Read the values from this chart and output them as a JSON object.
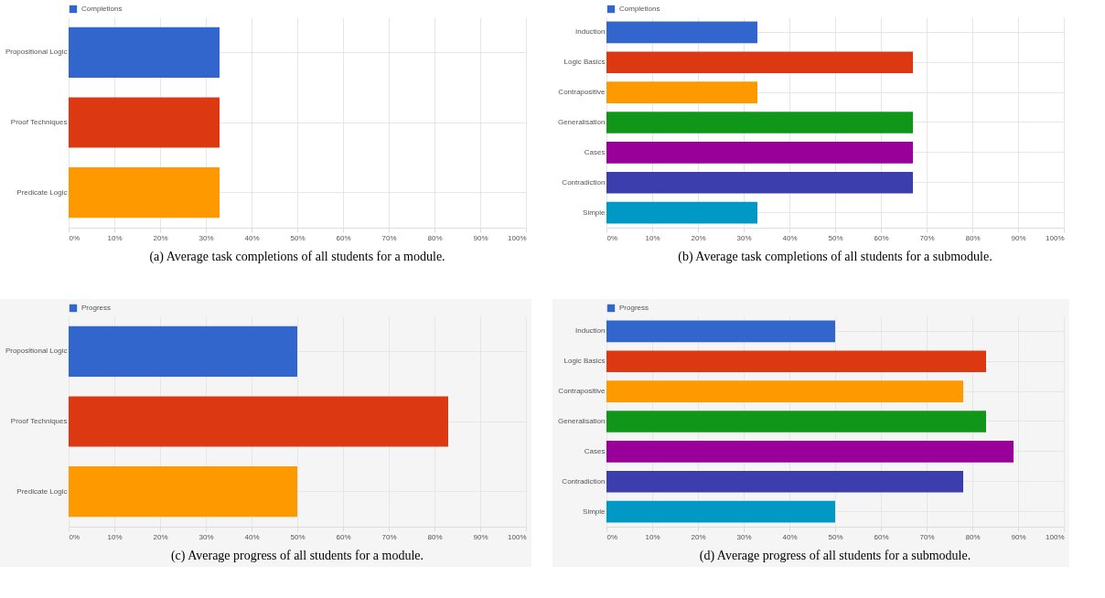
{
  "chart_data": [
    {
      "type": "bar",
      "orientation": "horizontal",
      "title": "(a) Average task completions of all students for a module.",
      "categories": [
        "Propositional Logic",
        "Proof Techniques",
        "Predicate Logic"
      ],
      "series": [
        {
          "name": "Completions",
          "color": "#3366cc",
          "colors": [
            "#3366cc",
            "#dc3912",
            "#ff9900"
          ],
          "values": [
            33,
            33,
            33
          ]
        }
      ],
      "xlim": [
        0,
        100
      ],
      "xticks": [
        {
          "value": 0,
          "label": "0%"
        },
        {
          "value": 10,
          "label": "10%"
        },
        {
          "value": 20,
          "label": "20%"
        },
        {
          "value": 30,
          "label": "30%"
        },
        {
          "value": 40,
          "label": "40%"
        },
        {
          "value": 50,
          "label": "50%"
        },
        {
          "value": 60,
          "label": "60%"
        },
        {
          "value": 70,
          "label": "70%"
        },
        {
          "value": 80,
          "label": "80%"
        },
        {
          "value": 90,
          "label": "90%"
        },
        {
          "value": 100,
          "label": "100%"
        }
      ],
      "grid": true,
      "legend": "top"
    },
    {
      "type": "bar",
      "orientation": "horizontal",
      "title": "(b) Average task completions of all students for a submodule.",
      "categories": [
        "Induction",
        "Logic Basics",
        "Contrapositive",
        "Generalisation",
        "Cases",
        "Contradiction",
        "Simple"
      ],
      "series": [
        {
          "name": "Completions",
          "color": "#3366cc",
          "colors": [
            "#3366cc",
            "#dc3912",
            "#ff9900",
            "#109618",
            "#990099",
            "#3b3eac",
            "#0099c6"
          ],
          "values": [
            33,
            67,
            33,
            67,
            67,
            67,
            33
          ]
        }
      ],
      "xlim": [
        0,
        100
      ],
      "xticks": [
        {
          "value": 0,
          "label": "0%"
        },
        {
          "value": 10,
          "label": "10%"
        },
        {
          "value": 20,
          "label": "20%"
        },
        {
          "value": 30,
          "label": "30%"
        },
        {
          "value": 40,
          "label": "40%"
        },
        {
          "value": 50,
          "label": "50%"
        },
        {
          "value": 60,
          "label": "60%"
        },
        {
          "value": 70,
          "label": "70%"
        },
        {
          "value": 80,
          "label": "80%"
        },
        {
          "value": 90,
          "label": "90%"
        },
        {
          "value": 100,
          "label": "100%"
        }
      ],
      "grid": true,
      "legend": "top"
    },
    {
      "type": "bar",
      "orientation": "horizontal",
      "title": "(c) Average progress of all students for a module.",
      "categories": [
        "Propositional Logic",
        "Proof Techniques",
        "Predicate Logic"
      ],
      "series": [
        {
          "name": "Progress",
          "color": "#3366cc",
          "colors": [
            "#3366cc",
            "#dc3912",
            "#ff9900"
          ],
          "values": [
            50,
            83,
            50
          ]
        }
      ],
      "xlim": [
        0,
        100
      ],
      "xticks": [
        {
          "value": 0,
          "label": "0%"
        },
        {
          "value": 10,
          "label": "10%"
        },
        {
          "value": 20,
          "label": "20%"
        },
        {
          "value": 30,
          "label": "30%"
        },
        {
          "value": 40,
          "label": "40%"
        },
        {
          "value": 50,
          "label": "50%"
        },
        {
          "value": 60,
          "label": "60%"
        },
        {
          "value": 70,
          "label": "70%"
        },
        {
          "value": 80,
          "label": "80%"
        },
        {
          "value": 90,
          "label": "90%"
        },
        {
          "value": 100,
          "label": "100%"
        }
      ],
      "grid": true,
      "legend": "top"
    },
    {
      "type": "bar",
      "orientation": "horizontal",
      "title": "(d) Average progress of all students for a submodule.",
      "categories": [
        "Induction",
        "Logic Basics",
        "Contrapositive",
        "Generalisation",
        "Cases",
        "Contradiction",
        "Simple"
      ],
      "series": [
        {
          "name": "Progress",
          "color": "#3366cc",
          "colors": [
            "#3366cc",
            "#dc3912",
            "#ff9900",
            "#109618",
            "#990099",
            "#3b3eac",
            "#0099c6"
          ],
          "values": [
            50,
            83,
            78,
            83,
            89,
            78,
            50
          ]
        }
      ],
      "xlim": [
        0,
        100
      ],
      "xticks": [
        {
          "value": 0,
          "label": "0%"
        },
        {
          "value": 10,
          "label": "10%"
        },
        {
          "value": 20,
          "label": "20%"
        },
        {
          "value": 30,
          "label": "30%"
        },
        {
          "value": 40,
          "label": "40%"
        },
        {
          "value": 50,
          "label": "50%"
        },
        {
          "value": 60,
          "label": "60%"
        },
        {
          "value": 70,
          "label": "70%"
        },
        {
          "value": 80,
          "label": "80%"
        },
        {
          "value": 90,
          "label": "90%"
        },
        {
          "value": 100,
          "label": "100%"
        }
      ],
      "grid": true,
      "legend": "top"
    }
  ]
}
